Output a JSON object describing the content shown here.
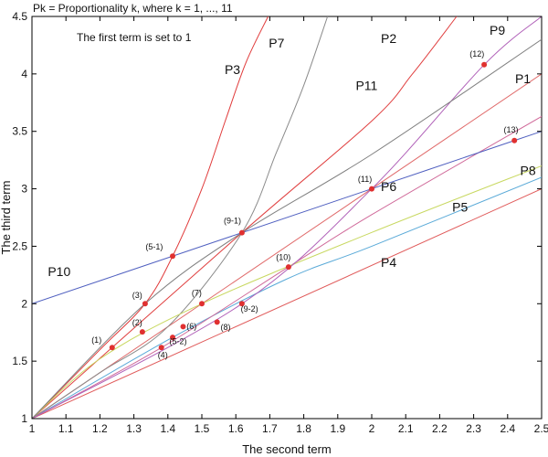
{
  "chart_data": {
    "type": "line",
    "title": "Pk = Proportionality k, where k = 1, ..., 11",
    "annotation": "The first term is set to 1",
    "xlabel": "The second term",
    "ylabel": "The third term",
    "xlim": [
      1,
      2.5
    ],
    "ylim": [
      1,
      4.5
    ],
    "xticks": [
      "1",
      "1.1",
      "1.2",
      "1.3",
      "1.4",
      "1.5",
      "1.6",
      "1.7",
      "1.8",
      "1.9",
      "2",
      "2.1",
      "2.2",
      "2.3",
      "2.4",
      "2.5"
    ],
    "yticks": [
      "1",
      "1.5",
      "2",
      "2.5",
      "3",
      "3.5",
      "4",
      "4.5"
    ],
    "grid": false,
    "curves": [
      {
        "name": "P1",
        "color": "#e06a6a",
        "label_at": [
          2.445,
          3.92
        ],
        "points": [
          [
            1,
            1
          ],
          [
            2.5,
            4
          ]
        ]
      },
      {
        "name": "P2",
        "color": "#e04040",
        "label_at": [
          2.05,
          4.27
        ],
        "points": [
          [
            1,
            1
          ],
          [
            1.618,
            2.618
          ],
          [
            2,
            3.59
          ],
          [
            2.12,
            4.0
          ],
          [
            2.25,
            4.5
          ]
        ]
      },
      {
        "name": "P3",
        "color": "#e03a3a",
        "label_at": [
          1.59,
          4.0
        ],
        "points": [
          [
            1,
            1
          ],
          [
            1.2,
            1.6
          ],
          [
            1.333,
            2
          ],
          [
            1.414,
            2.414
          ],
          [
            1.5,
            3.0
          ],
          [
            1.57,
            3.6
          ],
          [
            1.63,
            4.1
          ],
          [
            1.695,
            4.5
          ]
        ]
      },
      {
        "name": "P4",
        "color": "#e05a5a",
        "label_at": [
          2.05,
          2.32
        ],
        "points": [
          [
            1,
            1
          ],
          [
            2.5,
            3.0
          ]
        ]
      },
      {
        "name": "P5",
        "color": "#5aaad8",
        "label_at": [
          2.26,
          2.8
        ],
        "points": [
          [
            1,
            1
          ],
          [
            1.414,
            1.707
          ],
          [
            1.75,
            2.215
          ],
          [
            2,
            2.5
          ],
          [
            2.5,
            3.1
          ]
        ]
      },
      {
        "name": "P6",
        "color": "#d06a9a",
        "label_at": [
          2.05,
          2.98
        ],
        "points": [
          [
            1,
            1
          ],
          [
            1.381,
            1.618
          ],
          [
            1.755,
            2.32
          ],
          [
            2,
            2.775
          ],
          [
            2.5,
            3.63
          ]
        ]
      },
      {
        "name": "P7",
        "color": "#8a8a8a",
        "label_at": [
          1.72,
          4.23
        ],
        "points": [
          [
            1,
            1
          ],
          [
            1.2,
            1.4
          ],
          [
            1.4,
            1.8
          ],
          [
            1.618,
            2.618
          ],
          [
            1.72,
            3.32
          ],
          [
            1.8,
            3.9
          ],
          [
            1.87,
            4.5
          ]
        ]
      },
      {
        "name": "P8",
        "color": "#c8d860",
        "label_at": [
          2.46,
          3.12
        ],
        "points": [
          [
            1,
            1
          ],
          [
            1.2,
            1.52
          ],
          [
            1.5,
            2.0
          ],
          [
            2,
            2.62
          ],
          [
            2.5,
            3.2
          ]
        ]
      },
      {
        "name": "P9",
        "color": "#b060b8",
        "label_at": [
          2.37,
          4.34
        ],
        "points": [
          [
            1,
            1
          ],
          [
            1.618,
            2.0
          ],
          [
            2,
            3.0
          ],
          [
            2.331,
            4.08
          ],
          [
            2.5,
            4.5
          ]
        ]
      },
      {
        "name": "P10",
        "color": "#5060c0",
        "label_at": [
          1.08,
          2.24
        ],
        "points": [
          [
            1,
            2
          ],
          [
            1.414,
            2.414
          ],
          [
            1.618,
            2.618
          ],
          [
            2,
            3.0
          ],
          [
            2.414,
            3.414
          ],
          [
            2.5,
            3.5
          ]
        ]
      },
      {
        "name": "P11",
        "color": "#808080",
        "label_at": [
          1.985,
          3.86
        ],
        "points": [
          [
            1,
            1
          ],
          [
            1.333,
            2.0
          ],
          [
            1.618,
            2.618
          ],
          [
            2,
            3.3
          ],
          [
            2.5,
            4.3
          ]
        ]
      }
    ],
    "points": [
      {
        "label": "(1)",
        "x": 1.236,
        "y": 1.618,
        "label_at": [
          1.19,
          1.66
        ]
      },
      {
        "label": "(2)",
        "x": 1.325,
        "y": 1.755,
        "label_at": [
          1.31,
          1.81
        ]
      },
      {
        "label": "(3)",
        "x": 1.333,
        "y": 2.0,
        "label_at": [
          1.31,
          2.05
        ]
      },
      {
        "label": "(4)",
        "x": 1.381,
        "y": 1.618,
        "label_at": [
          1.385,
          1.53
        ]
      },
      {
        "label": "(5-1)",
        "x": 1.414,
        "y": 2.414,
        "label_at": [
          1.36,
          2.47
        ]
      },
      {
        "label": "(5-2)",
        "x": 1.414,
        "y": 1.707,
        "label_at": [
          1.43,
          1.65
        ]
      },
      {
        "label": "(6)",
        "x": 1.445,
        "y": 1.8,
        "label_at": [
          1.47,
          1.78
        ]
      },
      {
        "label": "(7)",
        "x": 1.5,
        "y": 2.0,
        "label_at": [
          1.485,
          2.07
        ]
      },
      {
        "label": "(8)",
        "x": 1.545,
        "y": 1.84,
        "label_at": [
          1.57,
          1.77
        ]
      },
      {
        "label": "(9-1)",
        "x": 1.618,
        "y": 2.618,
        "label_at": [
          1.59,
          2.7
        ]
      },
      {
        "label": "(9-2)",
        "x": 1.618,
        "y": 2.0,
        "label_at": [
          1.64,
          1.93
        ]
      },
      {
        "label": "(10)",
        "x": 1.755,
        "y": 2.32,
        "label_at": [
          1.74,
          2.38
        ]
      },
      {
        "label": "(11)",
        "x": 2.0,
        "y": 3.0,
        "label_at": [
          1.98,
          3.06
        ]
      },
      {
        "label": "(12)",
        "x": 2.331,
        "y": 4.08,
        "label_at": [
          2.31,
          4.15
        ]
      },
      {
        "label": "(13)",
        "x": 2.42,
        "y": 3.42,
        "label_at": [
          2.41,
          3.49
        ]
      }
    ],
    "point_color": "#e03030"
  }
}
